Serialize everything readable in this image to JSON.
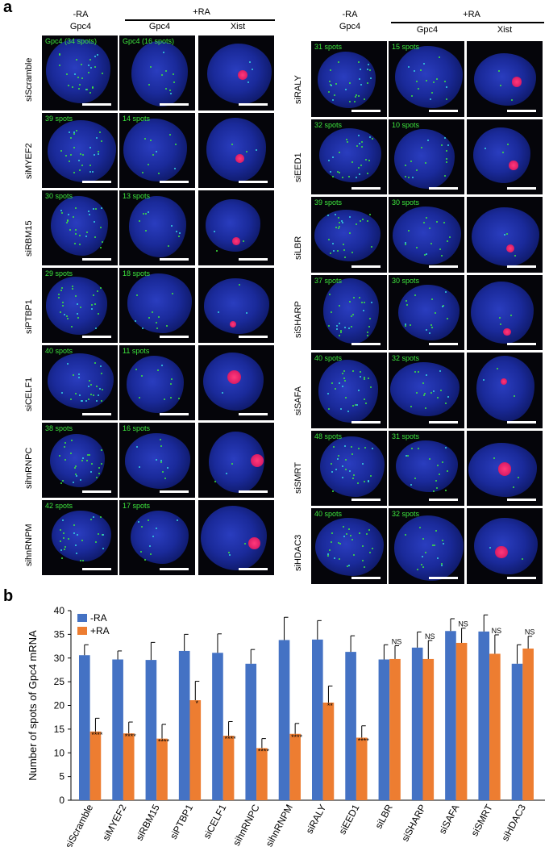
{
  "panel_a_label": "a",
  "panel_b_label": "b",
  "headers": {
    "minus_ra": "-RA",
    "plus_ra": "+RA",
    "gpc4": "Gpc4",
    "xist": "Xist"
  },
  "left_rows": [
    {
      "label": "siScramble",
      "minus": "Gpc4 (34 spots)",
      "plus": "Gpc4 (16 spots)"
    },
    {
      "label": "siMYEF2",
      "minus": "39 spots",
      "plus": "14 spots"
    },
    {
      "label": "siRBM15",
      "minus": "30 spots",
      "plus": "13 spots"
    },
    {
      "label": "siPTBP1",
      "minus": "29 spots",
      "plus": "18 spots"
    },
    {
      "label": "siCELF1",
      "minus": "40 spots",
      "plus": "11 spots"
    },
    {
      "label": "sihnRNPC",
      "minus": "38 spots",
      "plus": "16 spots"
    },
    {
      "label": "sihnRNPM",
      "minus": "42 spots",
      "plus": "17 spots"
    }
  ],
  "right_rows": [
    {
      "label": "siRALY",
      "minus": "31 spots",
      "plus": "15 spots"
    },
    {
      "label": "siEED1",
      "minus": "32 spots",
      "plus": "10 spots"
    },
    {
      "label": "siLBR",
      "minus": "39 spots",
      "plus": "30 spots"
    },
    {
      "label": "siSHARP",
      "minus": "37 spots",
      "plus": "30 spots"
    },
    {
      "label": "siSAFA",
      "minus": "40 spots",
      "plus": "32 spots"
    },
    {
      "label": "siSMRT",
      "minus": "48 spots",
      "plus": "31 spots"
    },
    {
      "label": "siHDAC3",
      "minus": "40 spots",
      "plus": "32 spots"
    }
  ],
  "colors": {
    "minus_ra": "#4472C4",
    "plus_ra": "#ED7D31"
  },
  "chart_data": {
    "type": "bar",
    "ylabel": "Number of spots of Gpc4 mRNA",
    "ylim": [
      0,
      40
    ],
    "yticks": [
      0,
      5,
      10,
      15,
      20,
      25,
      30,
      35,
      40
    ],
    "categories": [
      "siScramble",
      "siMYEF2",
      "siRBM15",
      "siPTBP1",
      "siCELF1",
      "sihnRNPC",
      "sihnRNPM",
      "siRALY",
      "siEED1",
      "siLBR",
      "siSHARP",
      "siSAFA",
      "siSMRT",
      "siHDAC3"
    ],
    "series": [
      {
        "name": "-RA",
        "values": [
          30.6,
          29.7,
          29.6,
          31.5,
          31.1,
          28.8,
          33.8,
          33.9,
          31.3,
          29.7,
          32.2,
          35.7,
          35.6,
          28.8
        ],
        "errors": [
          2.2,
          1.8,
          3.7,
          3.5,
          4.0,
          3.0,
          4.8,
          4.0,
          3.4,
          3.1,
          3.3,
          2.6,
          3.5,
          4.0
        ]
      },
      {
        "name": "+RA",
        "values": [
          14.5,
          14.1,
          13.0,
          21.1,
          13.6,
          11.0,
          14.0,
          20.6,
          13.2,
          29.8,
          29.8,
          33.2,
          30.9,
          32.0
        ],
        "errors": [
          2.8,
          2.4,
          3.0,
          4.0,
          3.0,
          2.0,
          2.2,
          3.5,
          2.5,
          2.8,
          3.9,
          3.1,
          4.0,
          2.6
        ]
      }
    ],
    "significance": [
      "****",
      "****",
      "****",
      "*",
      "****",
      "****",
      "****",
      "**",
      "****",
      "NS",
      "NS",
      "NS",
      "NS",
      "NS"
    ]
  }
}
